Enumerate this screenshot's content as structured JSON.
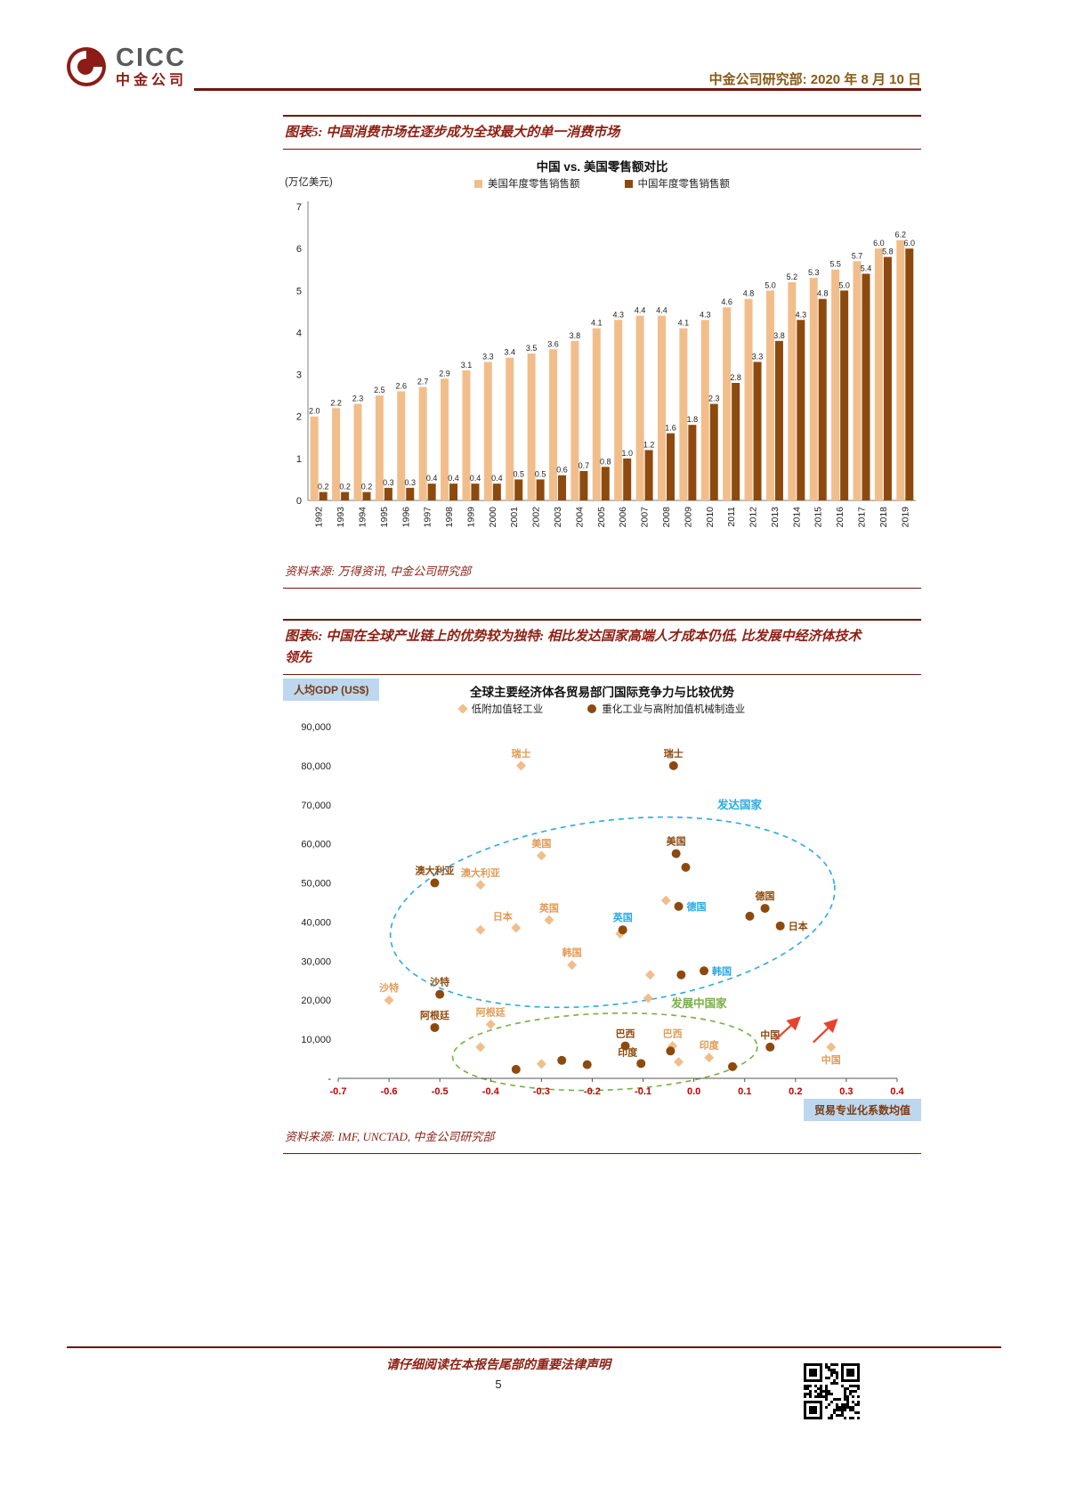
{
  "header": {
    "logo_text": "CICC",
    "logo_subtext": "中金公司",
    "dept_date": "中金公司研究部: 2020 年 8 月 10 日"
  },
  "figure5": {
    "caption": "图表5: 中国消费市场在逐步成为全球最大的单一消费市场",
    "source": "资料来源: 万得资讯, 中金公司研究部"
  },
  "figure6": {
    "caption": "图表6: 中国在全球产业链上的优势较为独特: 相比发达国家高端人才成本仍低, 比发展中经济体技术领先",
    "source": "资料来源: IMF, UNCTAD, 中金公司研究部"
  },
  "footer": {
    "disclaimer": "请仔细阅读在本报告尾部的重要法律声明",
    "page_number": "5"
  },
  "colors": {
    "brand_maroon": "#70150D",
    "caption_red": "#8E1F12",
    "header_gold": "#8A5A18",
    "axis_label_bg": "#BDD7EE"
  },
  "chart_data": [
    {
      "type": "bar",
      "title": "中国 vs. 美国零售额对比",
      "unit_label": "(万亿美元)",
      "categories": [
        "1992",
        "1993",
        "1994",
        "1995",
        "1996",
        "1997",
        "1998",
        "1999",
        "2000",
        "2001",
        "2002",
        "2003",
        "2004",
        "2005",
        "2006",
        "2007",
        "2008",
        "2009",
        "2010",
        "2011",
        "2012",
        "2013",
        "2014",
        "2015",
        "2016",
        "2017",
        "2018",
        "2019"
      ],
      "series": [
        {
          "name": "美国年度零售销售额",
          "color": "#F1BE8B",
          "values": [
            2.0,
            2.2,
            2.3,
            2.5,
            2.6,
            2.7,
            2.9,
            3.1,
            3.3,
            3.4,
            3.5,
            3.6,
            3.8,
            4.1,
            4.3,
            4.4,
            4.4,
            4.1,
            4.3,
            4.6,
            4.8,
            5.0,
            5.2,
            5.3,
            5.5,
            5.7,
            6.0,
            6.2
          ]
        },
        {
          "name": "中国年度零售销售额",
          "color": "#8D4A0E",
          "values": [
            0.2,
            0.2,
            0.2,
            0.3,
            0.3,
            0.4,
            0.4,
            0.4,
            0.4,
            0.5,
            0.5,
            0.6,
            0.7,
            0.8,
            1.0,
            1.2,
            1.6,
            1.8,
            2.3,
            2.8,
            3.3,
            3.8,
            4.3,
            4.8,
            5.0,
            5.4,
            5.8,
            6.0
          ]
        }
      ],
      "ylim": [
        0,
        7
      ],
      "yticks": [
        0,
        1,
        2,
        3,
        4,
        5,
        6,
        7
      ],
      "grid": false,
      "legend_position": "top"
    },
    {
      "type": "scatter",
      "title": "全球主要经济体各贸易部门国际竞争力与比较优势",
      "ylabel": "人均GDP (US$)",
      "xlabel": "贸易专业化系数均值",
      "xlim": [
        -0.7,
        0.4
      ],
      "ylim": [
        0,
        90000
      ],
      "xticks": [
        "-0.7",
        "-0.6",
        "-0.5",
        "-0.4",
        "-0.3",
        "-0.2",
        "-0.1",
        "0.0",
        "0.1",
        "0.2",
        "0.3",
        "0.4"
      ],
      "xtick_color": "#C00000",
      "yticks": [
        {
          "value": 90000,
          "label": "90,000"
        },
        {
          "value": 80000,
          "label": "80,000"
        },
        {
          "value": 70000,
          "label": "70,000"
        },
        {
          "value": 60000,
          "label": "60,000"
        },
        {
          "value": 50000,
          "label": "50,000"
        },
        {
          "value": 40000,
          "label": "40,000"
        },
        {
          "value": 30000,
          "label": "30,000"
        },
        {
          "value": 20000,
          "label": "20,000"
        },
        {
          "value": 10000,
          "label": "10,000"
        },
        {
          "value": 0,
          "label": "-"
        }
      ],
      "series": [
        {
          "name": "低附加值轻工业",
          "marker": "diamond",
          "color": "#F1BE8B",
          "label_color": "#E39A55",
          "points": [
            {
              "x": -0.34,
              "y": 80000,
              "label": "瑞士",
              "lp": "top"
            },
            {
              "x": -0.3,
              "y": 57000,
              "label": "美国",
              "lp": "top"
            },
            {
              "x": -0.42,
              "y": 49500,
              "label": "澳大利亚",
              "lp": "top"
            },
            {
              "x": -0.35,
              "y": 38500,
              "label": "日本",
              "lp": "topleft"
            },
            {
              "x": -0.285,
              "y": 40500,
              "label": "英国",
              "lp": "top"
            },
            {
              "x": -0.42,
              "y": 38000
            },
            {
              "x": -0.145,
              "y": 37000
            },
            {
              "x": -0.055,
              "y": 45500
            },
            {
              "x": -0.24,
              "y": 29000,
              "label": "韩国",
              "lp": "top"
            },
            {
              "x": -0.086,
              "y": 26500
            },
            {
              "x": -0.09,
              "y": 20500
            },
            {
              "x": -0.6,
              "y": 20000,
              "label": "沙特",
              "lp": "top"
            },
            {
              "x": -0.4,
              "y": 13800,
              "label": "阿根廷",
              "lp": "top"
            },
            {
              "x": -0.42,
              "y": 8000
            },
            {
              "x": -0.3,
              "y": 3700
            },
            {
              "x": -0.042,
              "y": 8300,
              "label": "巴西",
              "lp": "top"
            },
            {
              "x": 0.03,
              "y": 5300,
              "label": "印度",
              "lp": "top"
            },
            {
              "x": -0.03,
              "y": 4200
            },
            {
              "x": 0.27,
              "y": 8000,
              "label": "中国",
              "lp": "bottom"
            }
          ]
        },
        {
          "name": "重化工业与高附加值机械制造业",
          "marker": "circle",
          "color": "#8D4A0E",
          "label_color": "#8D4A0E",
          "points": [
            {
              "x": -0.04,
              "y": 80000,
              "label": "瑞士",
              "lp": "top"
            },
            {
              "x": -0.035,
              "y": 57500,
              "label": "美国",
              "lp": "top"
            },
            {
              "x": -0.016,
              "y": 54000
            },
            {
              "x": -0.51,
              "y": 50000,
              "label": "澳大利亚",
              "lp": "top"
            },
            {
              "x": -0.03,
              "y": 44000,
              "label": "德国",
              "lp": "right",
              "label_color": "#29ABE2"
            },
            {
              "x": -0.14,
              "y": 38000,
              "label": "英国",
              "lp": "top",
              "label_color": "#29ABE2"
            },
            {
              "x": 0.14,
              "y": 43500,
              "label": "德国",
              "lp": "top"
            },
            {
              "x": 0.17,
              "y": 39000,
              "label": "日本",
              "lp": "right"
            },
            {
              "x": 0.11,
              "y": 41500
            },
            {
              "x": 0.02,
              "y": 27500,
              "label": "韩国",
              "lp": "right",
              "label_color": "#29ABE2"
            },
            {
              "x": -0.025,
              "y": 26500
            },
            {
              "x": -0.5,
              "y": 21500,
              "label": "沙特",
              "lp": "top"
            },
            {
              "x": -0.51,
              "y": 13000,
              "label": "阿根廷",
              "lp": "top"
            },
            {
              "x": -0.135,
              "y": 8300,
              "label": "巴西",
              "lp": "top"
            },
            {
              "x": -0.104,
              "y": 3800,
              "label": "印度",
              "lp": "topleft"
            },
            {
              "x": 0.15,
              "y": 8000,
              "label": "中国",
              "lp": "top"
            },
            {
              "x": -0.35,
              "y": 2300
            },
            {
              "x": -0.26,
              "y": 4600
            },
            {
              "x": -0.21,
              "y": 3500
            },
            {
              "x": -0.046,
              "y": 7000
            },
            {
              "x": 0.076,
              "y": 3000
            }
          ]
        }
      ],
      "ellipses": [
        {
          "label": "发达国家",
          "color": "#29ABE2",
          "cx": -0.16,
          "cy": 42500,
          "rx": 0.44,
          "ry": 23500,
          "rotate": -7,
          "label_x": 0.09,
          "label_y": 69000
        },
        {
          "label": "发展中国家",
          "color": "#76B043",
          "cx": -0.175,
          "cy": 6800,
          "rx": 0.3,
          "ry": 9800,
          "rotate": -2,
          "label_x": 0.01,
          "label_y": 18200
        }
      ],
      "arrows": [
        {
          "x1": 0.16,
          "y1": 9800,
          "x2": 0.205,
          "y2": 15200
        },
        {
          "x1": 0.235,
          "y1": 9200,
          "x2": 0.278,
          "y2": 14600
        }
      ],
      "arrow_color": "#E8412C"
    }
  ]
}
